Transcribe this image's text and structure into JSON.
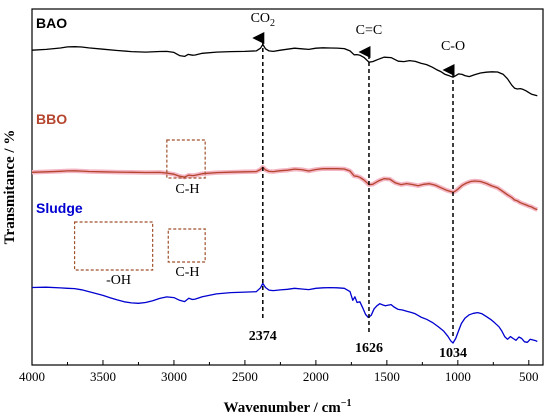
{
  "chart_data": {
    "type": "line",
    "xlabel": "Wavenumber / cm",
    "xlabel_sup": "−1",
    "ylabel": "Transmitance / %",
    "xlim": [
      4000,
      400
    ],
    "x_ticks": [
      "4000",
      "3500",
      "3000",
      "2500",
      "2000",
      "1500",
      "1000",
      "500"
    ],
    "series": [
      {
        "name": "BAO",
        "color": "#000000",
        "points": [
          [
            4000,
            0.832
          ],
          [
            3900,
            0.838
          ],
          [
            3800,
            0.85
          ],
          [
            3750,
            0.859
          ],
          [
            3700,
            0.861
          ],
          [
            3650,
            0.858
          ],
          [
            3600,
            0.851
          ],
          [
            3500,
            0.84
          ],
          [
            3400,
            0.829
          ],
          [
            3300,
            0.82
          ],
          [
            3200,
            0.816
          ],
          [
            3100,
            0.821
          ],
          [
            3050,
            0.822
          ],
          [
            3000,
            0.813
          ],
          [
            2960,
            0.787
          ],
          [
            2925,
            0.78
          ],
          [
            2900,
            0.797
          ],
          [
            2870,
            0.79
          ],
          [
            2850,
            0.792
          ],
          [
            2800,
            0.806
          ],
          [
            2700,
            0.816
          ],
          [
            2600,
            0.82
          ],
          [
            2500,
            0.822
          ],
          [
            2420,
            0.826
          ],
          [
            2390,
            0.848
          ],
          [
            2374,
            0.88
          ],
          [
            2355,
            0.843
          ],
          [
            2330,
            0.826
          ],
          [
            2300,
            0.822
          ],
          [
            2250,
            0.832
          ],
          [
            2200,
            0.84
          ],
          [
            2150,
            0.848
          ],
          [
            2100,
            0.843
          ],
          [
            2050,
            0.838
          ],
          [
            2000,
            0.848
          ],
          [
            1950,
            0.852
          ],
          [
            1900,
            0.85
          ],
          [
            1850,
            0.849
          ],
          [
            1800,
            0.845
          ],
          [
            1760,
            0.826
          ],
          [
            1730,
            0.793
          ],
          [
            1710,
            0.795
          ],
          [
            1690,
            0.79
          ],
          [
            1660,
            0.77
          ],
          [
            1626,
            0.732
          ],
          [
            1600,
            0.737
          ],
          [
            1560,
            0.756
          ],
          [
            1520,
            0.773
          ],
          [
            1470,
            0.77
          ],
          [
            1420,
            0.74
          ],
          [
            1380,
            0.737
          ],
          [
            1340,
            0.745
          ],
          [
            1300,
            0.738
          ],
          [
            1260,
            0.723
          ],
          [
            1220,
            0.712
          ],
          [
            1180,
            0.69
          ],
          [
            1150,
            0.67
          ],
          [
            1120,
            0.653
          ],
          [
            1090,
            0.63
          ],
          [
            1060,
            0.618
          ],
          [
            1034,
            0.607
          ],
          [
            1015,
            0.619
          ],
          [
            995,
            0.634
          ],
          [
            970,
            0.63
          ],
          [
            950,
            0.62
          ],
          [
            920,
            0.612
          ],
          [
            880,
            0.628
          ],
          [
            840,
            0.642
          ],
          [
            800,
            0.648
          ],
          [
            760,
            0.652
          ],
          [
            720,
            0.65
          ],
          [
            680,
            0.63
          ],
          [
            650,
            0.593
          ],
          [
            620,
            0.54
          ],
          [
            600,
            0.515
          ],
          [
            580,
            0.508
          ],
          [
            560,
            0.512
          ],
          [
            540,
            0.505
          ],
          [
            520,
            0.493
          ],
          [
            500,
            0.478
          ],
          [
            480,
            0.465
          ],
          [
            460,
            0.458
          ],
          [
            440,
            0.452
          ]
        ]
      },
      {
        "name": "BBO",
        "color": "#b5452e",
        "halo": "#f4b6c4",
        "points": [
          [
            4000,
            0.554
          ],
          [
            3900,
            0.558
          ],
          [
            3800,
            0.563
          ],
          [
            3750,
            0.566
          ],
          [
            3700,
            0.567
          ],
          [
            3650,
            0.564
          ],
          [
            3600,
            0.561
          ],
          [
            3500,
            0.558
          ],
          [
            3400,
            0.556
          ],
          [
            3300,
            0.554
          ],
          [
            3200,
            0.552
          ],
          [
            3100,
            0.553
          ],
          [
            3050,
            0.547
          ],
          [
            3000,
            0.537
          ],
          [
            2960,
            0.52
          ],
          [
            2925,
            0.512
          ],
          [
            2895,
            0.53
          ],
          [
            2870,
            0.525
          ],
          [
            2850,
            0.528
          ],
          [
            2800,
            0.542
          ],
          [
            2700,
            0.551
          ],
          [
            2600,
            0.555
          ],
          [
            2500,
            0.558
          ],
          [
            2420,
            0.56
          ],
          [
            2390,
            0.578
          ],
          [
            2374,
            0.598
          ],
          [
            2355,
            0.575
          ],
          [
            2330,
            0.562
          ],
          [
            2300,
            0.56
          ],
          [
            2250,
            0.568
          ],
          [
            2200,
            0.572
          ],
          [
            2150,
            0.582
          ],
          [
            2100,
            0.577
          ],
          [
            2050,
            0.565
          ],
          [
            2000,
            0.578
          ],
          [
            1950,
            0.585
          ],
          [
            1900,
            0.586
          ],
          [
            1850,
            0.585
          ],
          [
            1800,
            0.583
          ],
          [
            1760,
            0.565
          ],
          [
            1730,
            0.522
          ],
          [
            1710,
            0.519
          ],
          [
            1690,
            0.51
          ],
          [
            1660,
            0.485
          ],
          [
            1626,
            0.446
          ],
          [
            1600,
            0.45
          ],
          [
            1560,
            0.478
          ],
          [
            1520,
            0.498
          ],
          [
            1480,
            0.495
          ],
          [
            1440,
            0.462
          ],
          [
            1400,
            0.447
          ],
          [
            1360,
            0.456
          ],
          [
            1320,
            0.448
          ],
          [
            1280,
            0.437
          ],
          [
            1240,
            0.45
          ],
          [
            1200,
            0.455
          ],
          [
            1160,
            0.443
          ],
          [
            1120,
            0.42
          ],
          [
            1080,
            0.398
          ],
          [
            1050,
            0.387
          ],
          [
            1034,
            0.38
          ],
          [
            1015,
            0.392
          ],
          [
            995,
            0.412
          ],
          [
            970,
            0.44
          ],
          [
            940,
            0.46
          ],
          [
            910,
            0.474
          ],
          [
            880,
            0.478
          ],
          [
            840,
            0.474
          ],
          [
            800,
            0.457
          ],
          [
            760,
            0.436
          ],
          [
            720,
            0.418
          ],
          [
            680,
            0.384
          ],
          [
            650,
            0.358
          ],
          [
            620,
            0.335
          ],
          [
            600,
            0.313
          ],
          [
            580,
            0.305
          ],
          [
            560,
            0.29
          ],
          [
            540,
            0.28
          ],
          [
            520,
            0.27
          ],
          [
            500,
            0.26
          ],
          [
            480,
            0.253
          ],
          [
            460,
            0.238
          ],
          [
            440,
            0.23
          ]
        ]
      },
      {
        "name": "Sludge",
        "color": "#0000d0",
        "points": [
          [
            4000,
            0.37
          ],
          [
            3900,
            0.372
          ],
          [
            3800,
            0.367
          ],
          [
            3750,
            0.365
          ],
          [
            3700,
            0.363
          ],
          [
            3650,
            0.355
          ],
          [
            3600,
            0.343
          ],
          [
            3550,
            0.33
          ],
          [
            3500,
            0.317
          ],
          [
            3450,
            0.302
          ],
          [
            3400,
            0.287
          ],
          [
            3350,
            0.275
          ],
          [
            3300,
            0.267
          ],
          [
            3250,
            0.265
          ],
          [
            3200,
            0.27
          ],
          [
            3150,
            0.282
          ],
          [
            3100,
            0.297
          ],
          [
            3050,
            0.307
          ],
          [
            3000,
            0.303
          ],
          [
            2960,
            0.285
          ],
          [
            2925,
            0.276
          ],
          [
            2895,
            0.298
          ],
          [
            2870,
            0.29
          ],
          [
            2850,
            0.293
          ],
          [
            2800,
            0.308
          ],
          [
            2700,
            0.327
          ],
          [
            2600,
            0.336
          ],
          [
            2500,
            0.339
          ],
          [
            2420,
            0.342
          ],
          [
            2390,
            0.368
          ],
          [
            2374,
            0.397
          ],
          [
            2355,
            0.37
          ],
          [
            2330,
            0.353
          ],
          [
            2300,
            0.349
          ],
          [
            2250,
            0.354
          ],
          [
            2200,
            0.358
          ],
          [
            2150,
            0.365
          ],
          [
            2100,
            0.36
          ],
          [
            2050,
            0.356
          ],
          [
            2000,
            0.365
          ],
          [
            1950,
            0.368
          ],
          [
            1900,
            0.369
          ],
          [
            1850,
            0.368
          ],
          [
            1800,
            0.365
          ],
          [
            1760,
            0.343
          ],
          [
            1740,
            0.285
          ],
          [
            1725,
            0.308
          ],
          [
            1710,
            0.27
          ],
          [
            1690,
            0.275
          ],
          [
            1670,
            0.235
          ],
          [
            1650,
            0.19
          ],
          [
            1630,
            0.17
          ],
          [
            1610,
            0.185
          ],
          [
            1590,
            0.228
          ],
          [
            1570,
            0.248
          ],
          [
            1550,
            0.262
          ],
          [
            1530,
            0.254
          ],
          [
            1510,
            0.248
          ],
          [
            1490,
            0.253
          ],
          [
            1470,
            0.256
          ],
          [
            1450,
            0.24
          ],
          [
            1420,
            0.224
          ],
          [
            1390,
            0.22
          ],
          [
            1360,
            0.212
          ],
          [
            1330,
            0.204
          ],
          [
            1300,
            0.195
          ],
          [
            1260,
            0.173
          ],
          [
            1220,
            0.158
          ],
          [
            1180,
            0.137
          ],
          [
            1140,
            0.11
          ],
          [
            1100,
            0.08
          ],
          [
            1070,
            0.045
          ],
          [
            1050,
            0.015
          ],
          [
            1034,
            0.0
          ],
          [
            1015,
            0.03
          ],
          [
            995,
            0.08
          ],
          [
            975,
            0.13
          ],
          [
            950,
            0.165
          ],
          [
            920,
            0.188
          ],
          [
            890,
            0.198
          ],
          [
            860,
            0.203
          ],
          [
            830,
            0.195
          ],
          [
            800,
            0.177
          ],
          [
            770,
            0.158
          ],
          [
            740,
            0.135
          ],
          [
            710,
            0.108
          ],
          [
            690,
            0.08
          ],
          [
            670,
            0.043
          ],
          [
            650,
            0.025
          ],
          [
            630,
            0.043
          ],
          [
            610,
            0.03
          ],
          [
            590,
            0.018
          ],
          [
            570,
            0.04
          ],
          [
            550,
            0.03
          ],
          [
            530,
            0.008
          ],
          [
            510,
            0.005
          ],
          [
            490,
            0.025
          ],
          [
            470,
            0.02
          ],
          [
            450,
            0.015
          ],
          [
            440,
            0.01
          ]
        ]
      }
    ],
    "dashed_markers": [
      {
        "x": 2374,
        "label": "CO",
        "label_sub": "2",
        "tick_label": "2374"
      },
      {
        "x": 1626,
        "label": "C=C",
        "tick_label": "1626"
      },
      {
        "x": 1034,
        "label": "C-O",
        "tick_label": "1034"
      }
    ],
    "annotations": [
      {
        "text": "C-H",
        "box_x": [
          3050,
          2780
        ],
        "series": "BBO"
      },
      {
        "text": "-OH",
        "box_x": [
          3700,
          3150
        ],
        "series": "Sludge"
      },
      {
        "text": "C-H",
        "box_x": [
          3040,
          2780
        ],
        "series": "Sludge"
      }
    ]
  }
}
